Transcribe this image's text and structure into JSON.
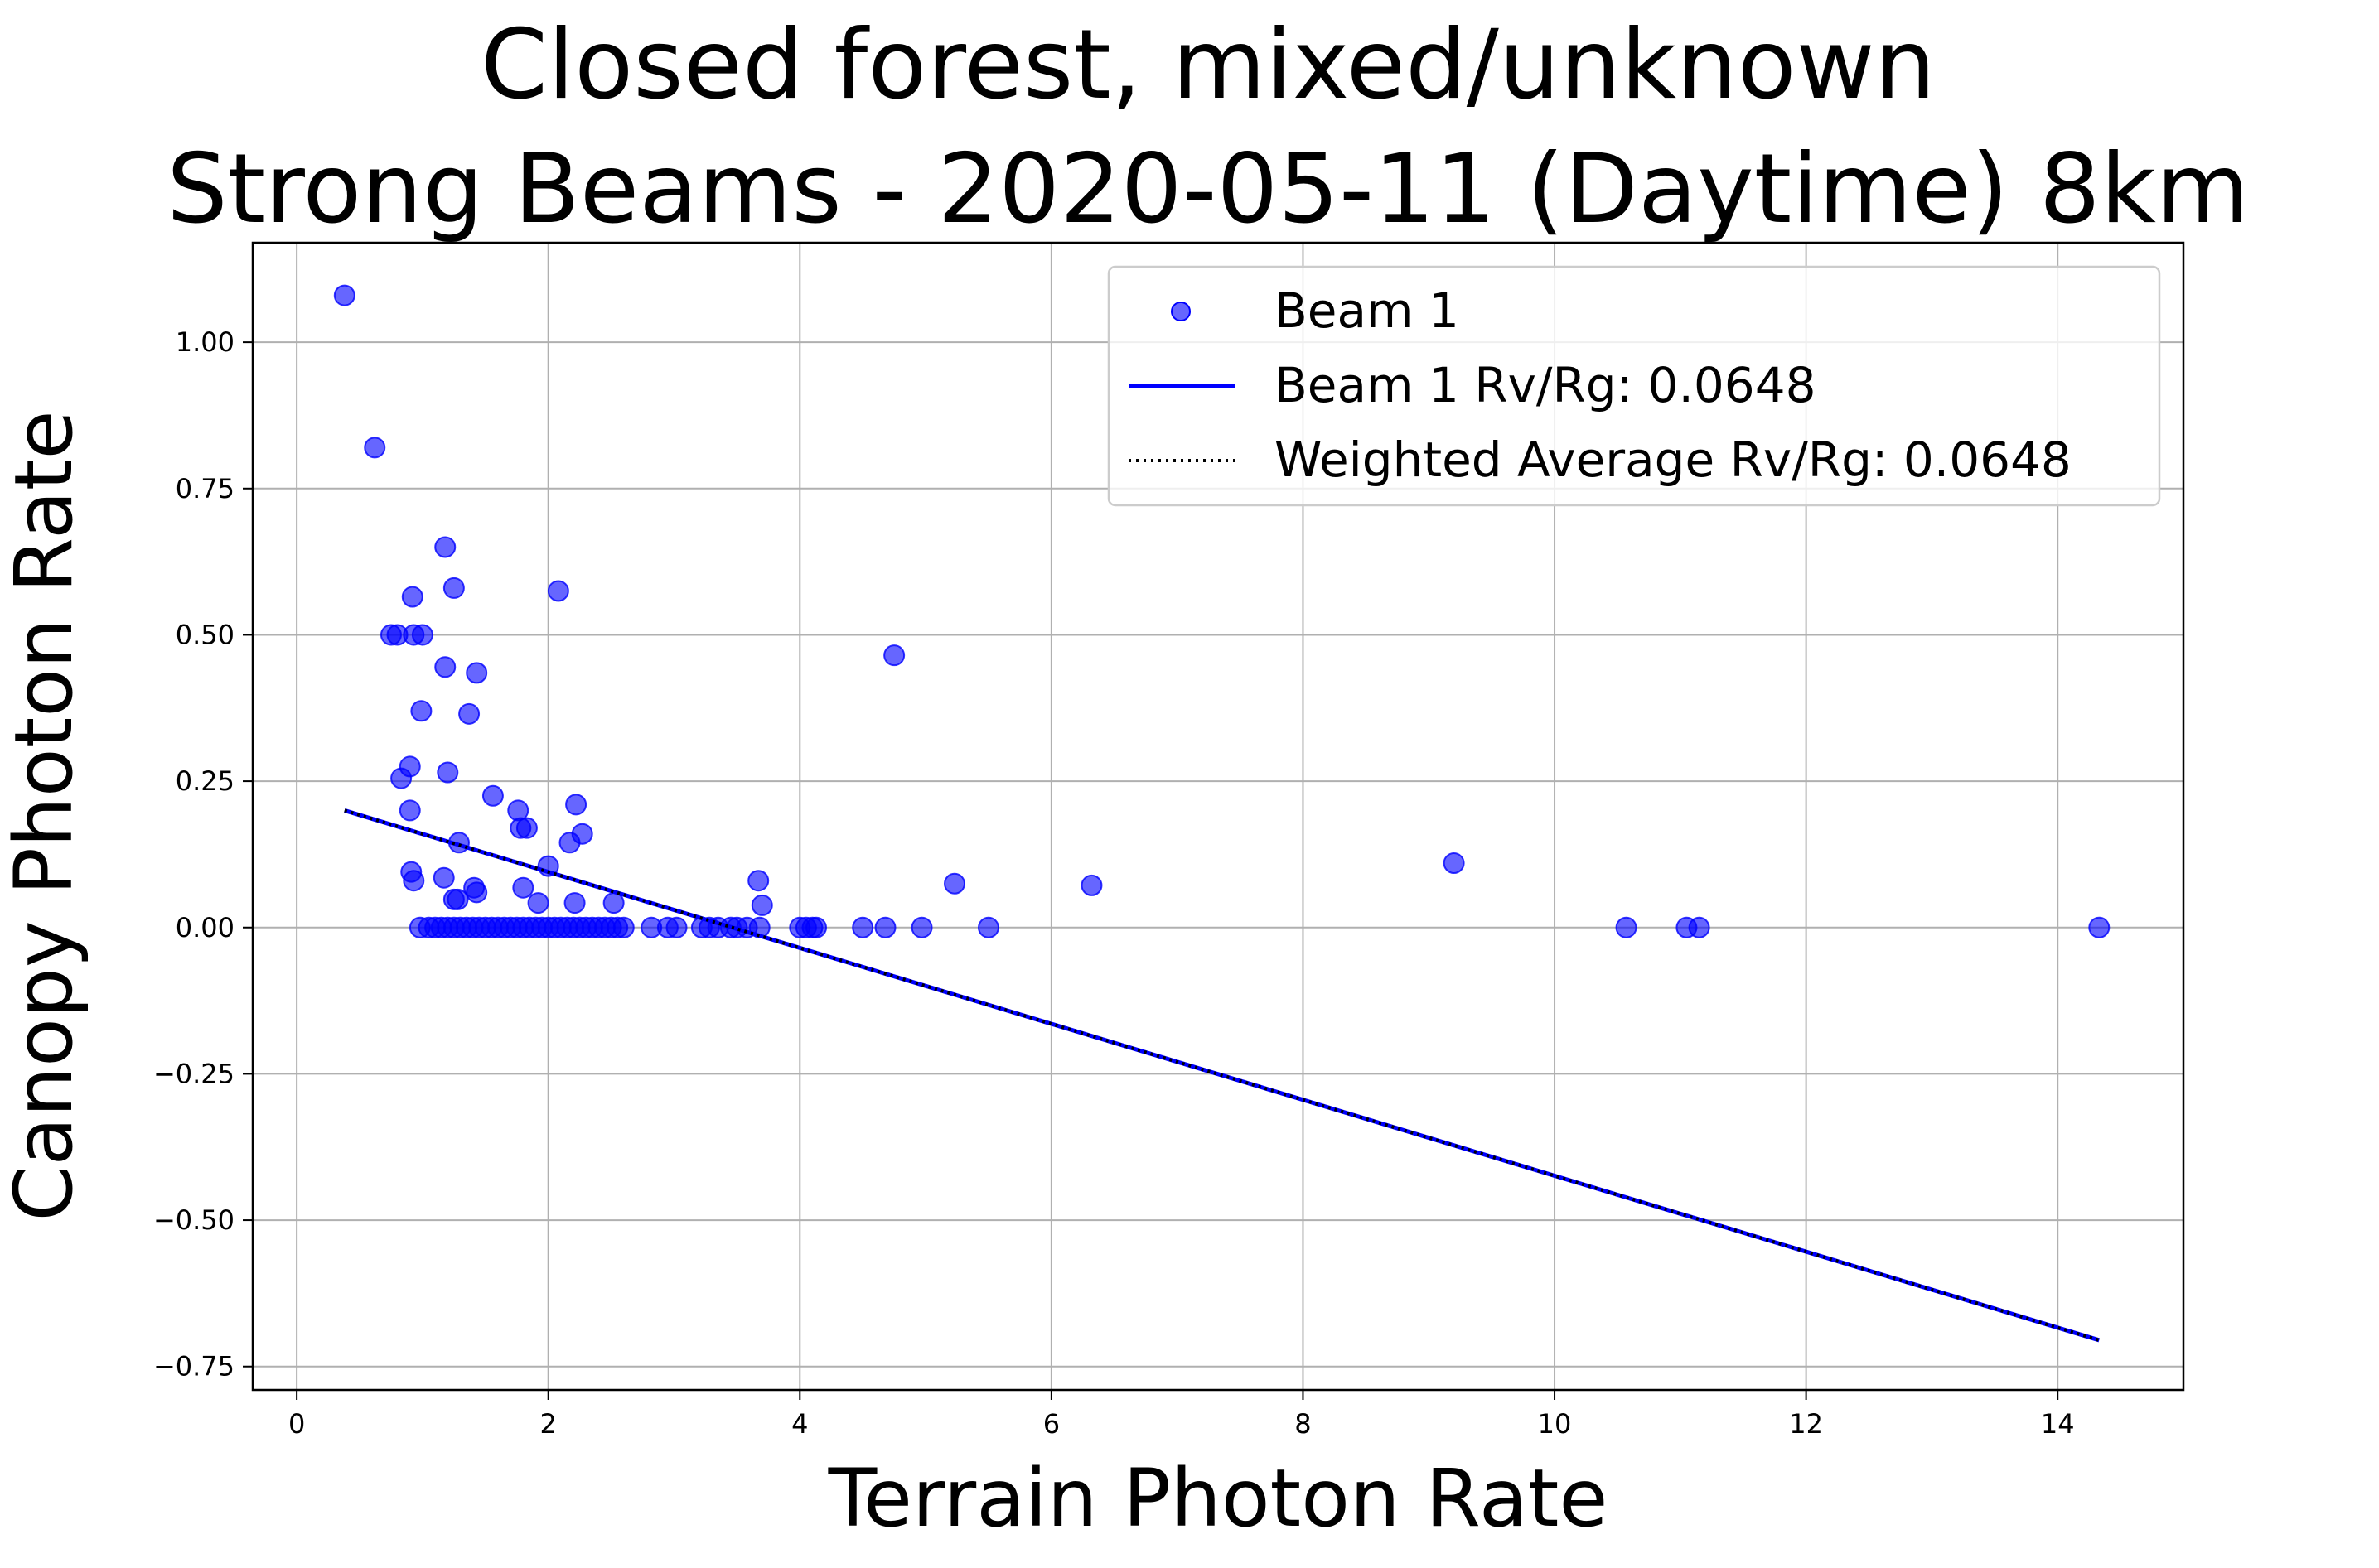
{
  "chart_data": {
    "type": "scatter",
    "title_line1": "Closed forest, mixed/unknown",
    "title_line2": "Strong Beams - 2020-05-11 (Daytime) 8km",
    "xlabel": "Terrain Photon Rate",
    "ylabel": "Canopy Photon Rate",
    "xlim": [
      -0.35,
      15.0
    ],
    "ylim": [
      -0.79,
      1.17
    ],
    "xticks": [
      0,
      2,
      4,
      6,
      8,
      10,
      12,
      14
    ],
    "xtick_labels": [
      "0",
      "2",
      "4",
      "6",
      "8",
      "10",
      "12",
      "14"
    ],
    "yticks": [
      -0.75,
      -0.5,
      -0.25,
      0.0,
      0.25,
      0.5,
      0.75,
      1.0
    ],
    "ytick_labels": [
      "−0.75",
      "−0.50",
      "−0.25",
      "0.00",
      "0.25",
      "0.50",
      "0.75",
      "1.00"
    ],
    "grid": true,
    "legend_position": "top-right",
    "colors": {
      "scatter": "#0000ff",
      "fit_line": "#0000ff",
      "avg_line": "#000000"
    },
    "series": [
      {
        "name": "Beam 1",
        "kind": "scatter",
        "points": [
          [
            0.38,
            1.08
          ],
          [
            0.62,
            0.82
          ],
          [
            0.75,
            0.5
          ],
          [
            0.8,
            0.5
          ],
          [
            0.93,
            0.5
          ],
          [
            1.0,
            0.5
          ],
          [
            0.92,
            0.565
          ],
          [
            1.18,
            0.65
          ],
          [
            1.25,
            0.58
          ],
          [
            2.08,
            0.575
          ],
          [
            1.18,
            0.445
          ],
          [
            1.43,
            0.435
          ],
          [
            4.75,
            0.465
          ],
          [
            0.99,
            0.37
          ],
          [
            1.37,
            0.365
          ],
          [
            0.9,
            0.275
          ],
          [
            0.83,
            0.255
          ],
          [
            1.2,
            0.265
          ],
          [
            0.9,
            0.2
          ],
          [
            1.56,
            0.225
          ],
          [
            1.76,
            0.2
          ],
          [
            2.22,
            0.21
          ],
          [
            1.78,
            0.17
          ],
          [
            1.83,
            0.17
          ],
          [
            2.27,
            0.16
          ],
          [
            1.29,
            0.145
          ],
          [
            2.17,
            0.145
          ],
          [
            2.0,
            0.105
          ],
          [
            9.2,
            0.11
          ],
          [
            0.91,
            0.095
          ],
          [
            0.93,
            0.08
          ],
          [
            1.17,
            0.085
          ],
          [
            3.67,
            0.08
          ],
          [
            5.23,
            0.075
          ],
          [
            6.32,
            0.072
          ],
          [
            1.41,
            0.068
          ],
          [
            1.8,
            0.068
          ],
          [
            1.43,
            0.06
          ],
          [
            1.25,
            0.048
          ],
          [
            1.28,
            0.048
          ],
          [
            1.92,
            0.042
          ],
          [
            2.21,
            0.042
          ],
          [
            2.52,
            0.042
          ],
          [
            3.7,
            0.038
          ],
          [
            0.98,
            0.0
          ],
          [
            1.05,
            0.0
          ],
          [
            1.1,
            0.0
          ],
          [
            1.15,
            0.0
          ],
          [
            1.2,
            0.0
          ],
          [
            1.25,
            0.0
          ],
          [
            1.3,
            0.0
          ],
          [
            1.35,
            0.0
          ],
          [
            1.4,
            0.0
          ],
          [
            1.45,
            0.0
          ],
          [
            1.5,
            0.0
          ],
          [
            1.55,
            0.0
          ],
          [
            1.6,
            0.0
          ],
          [
            1.65,
            0.0
          ],
          [
            1.7,
            0.0
          ],
          [
            1.75,
            0.0
          ],
          [
            1.8,
            0.0
          ],
          [
            1.85,
            0.0
          ],
          [
            1.9,
            0.0
          ],
          [
            1.95,
            0.0
          ],
          [
            2.0,
            0.0
          ],
          [
            2.05,
            0.0
          ],
          [
            2.1,
            0.0
          ],
          [
            2.15,
            0.0
          ],
          [
            2.2,
            0.0
          ],
          [
            2.25,
            0.0
          ],
          [
            2.3,
            0.0
          ],
          [
            2.35,
            0.0
          ],
          [
            2.4,
            0.0
          ],
          [
            2.45,
            0.0
          ],
          [
            2.5,
            0.0
          ],
          [
            2.55,
            0.0
          ],
          [
            2.6,
            0.0
          ],
          [
            2.82,
            0.0
          ],
          [
            2.95,
            0.0
          ],
          [
            3.02,
            0.0
          ],
          [
            3.22,
            0.0
          ],
          [
            3.28,
            0.0
          ],
          [
            3.35,
            0.0
          ],
          [
            3.45,
            0.0
          ],
          [
            3.5,
            0.0
          ],
          [
            3.58,
            0.0
          ],
          [
            3.68,
            0.0
          ],
          [
            4.0,
            0.0
          ],
          [
            4.05,
            0.0
          ],
          [
            4.1,
            0.0
          ],
          [
            4.13,
            0.0
          ],
          [
            4.5,
            0.0
          ],
          [
            4.68,
            0.0
          ],
          [
            4.97,
            0.0
          ],
          [
            5.5,
            0.0
          ],
          [
            10.57,
            0.0
          ],
          [
            11.05,
            0.0
          ],
          [
            11.15,
            0.0
          ],
          [
            14.33,
            0.0
          ]
        ]
      },
      {
        "name": "Beam 1 Rv/Rg: 0.0648",
        "kind": "line",
        "points": [
          [
            0.38,
            0.2
          ],
          [
            14.33,
            -0.705
          ]
        ]
      },
      {
        "name": "Weighted Average Rv/Rg: 0.0648",
        "kind": "dotted-line",
        "points": [
          [
            0.38,
            0.2
          ],
          [
            14.33,
            -0.705
          ]
        ]
      }
    ]
  }
}
